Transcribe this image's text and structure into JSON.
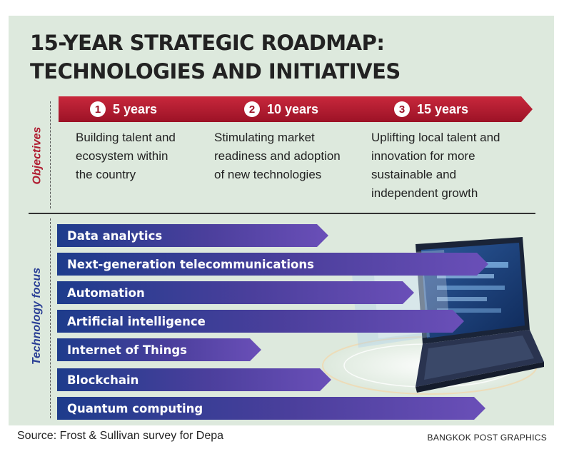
{
  "title": {
    "line1": "15-YEAR STRATEGIC ROADMAP:",
    "line2": "TECHNOLOGIES AND INITIATIVES"
  },
  "sections": {
    "objectives_label": "Objectives",
    "technology_label": "Technology focus"
  },
  "objectives": [
    {
      "number": "1",
      "period": "5 years",
      "lines": [
        "Building talent and",
        "ecosystem within",
        "the country"
      ]
    },
    {
      "number": "2",
      "period": "10 years",
      "lines": [
        "Stimulating market",
        "readiness and adoption",
        "of new technologies"
      ]
    },
    {
      "number": "3",
      "period": "15 years",
      "lines": [
        "Uplifting local talent and",
        "innovation for more",
        "sustainable and",
        "independent growth"
      ]
    }
  ],
  "technologies": [
    {
      "label": "Data analytics"
    },
    {
      "label": "Next-generation telecommunications"
    },
    {
      "label": "Automation"
    },
    {
      "label": "Artificial intelligence"
    },
    {
      "label": "Internet of Things"
    },
    {
      "label": "Blockchain"
    },
    {
      "label": "Quantum computing"
    }
  ],
  "footer": {
    "source": "Source: Frost & Sullivan survey for Depa",
    "credit": "BANGKOK POST GRAPHICS"
  },
  "colors": {
    "background": "#dde9dd",
    "objective_red": "#b01e32",
    "tech_blue": "#2a3f95",
    "tech_purple": "#6a4fb8"
  }
}
